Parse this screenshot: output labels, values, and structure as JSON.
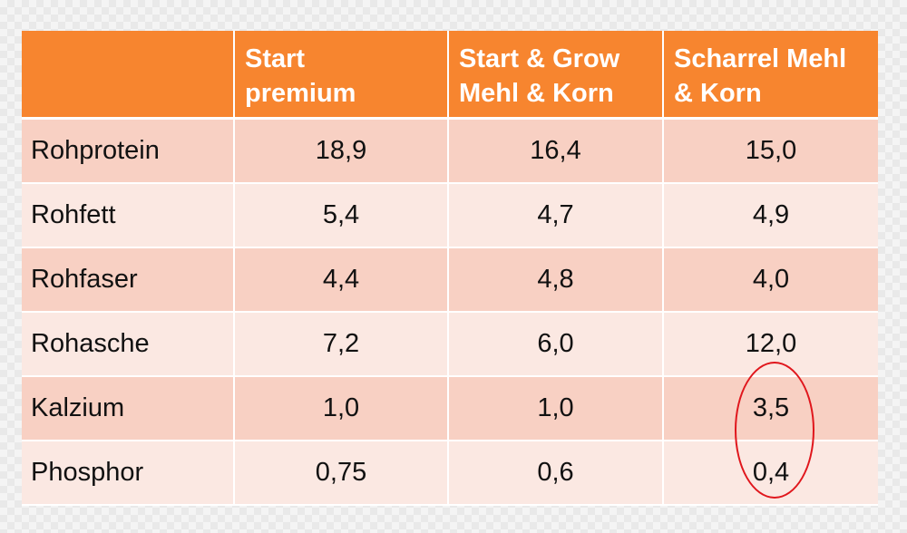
{
  "table": {
    "headers": [
      "",
      "Start premium",
      "Start & Grow Mehl & Korn",
      "Scharrel Mehl & Korn"
    ],
    "header_lines": [
      [],
      [
        "Start",
        "premium"
      ],
      [
        "Start & Grow",
        "Mehl & Korn"
      ],
      [
        "Scharrel Mehl",
        "& Korn"
      ]
    ],
    "rows": [
      {
        "label": "Rohprotein",
        "values": [
          "18,9",
          "16,4",
          "15,0"
        ]
      },
      {
        "label": "Rohfett",
        "values": [
          "5,4",
          "4,7",
          "4,9"
        ]
      },
      {
        "label": "Rohfaser",
        "values": [
          "4,4",
          "4,8",
          "4,0"
        ]
      },
      {
        "label": "Rohasche",
        "values": [
          "7,2",
          "6,0",
          "12,0"
        ]
      },
      {
        "label": "Kalzium",
        "values": [
          "1,0",
          "1,0",
          "3,5"
        ]
      },
      {
        "label": "Phosphor",
        "values": [
          "0,75",
          "0,6",
          "0,4"
        ]
      }
    ]
  },
  "colors": {
    "header_bg": "#f7852f",
    "row_odd_bg": "#f8d0c3",
    "row_even_bg": "#fbe8e2",
    "highlight_ellipse": "#e0161c"
  }
}
